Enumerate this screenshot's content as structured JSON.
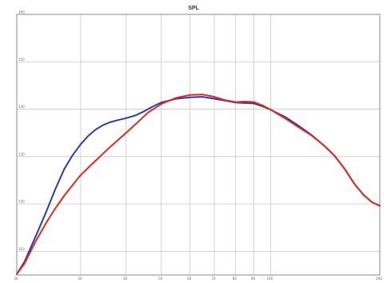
{
  "chart_data": {
    "type": "line",
    "title": "SPL",
    "xlabel": "",
    "ylabel": "",
    "x_scale": "log",
    "xlim": [
      20,
      200
    ],
    "ylim": [
      105,
      160
    ],
    "grid": true,
    "x_gridlines": [
      20,
      30,
      40,
      50,
      60,
      70,
      80,
      90,
      100,
      200
    ],
    "y_gridlines": [
      110,
      120,
      130,
      140,
      150,
      160
    ],
    "x_tick_labels": [
      "20",
      "30",
      "40",
      "50",
      "60",
      "70",
      "80",
      "90",
      "100",
      "200"
    ],
    "y_tick_labels": [
      "110",
      "120",
      "130",
      "140",
      "150",
      "160"
    ],
    "series": [
      {
        "color": "#2a3bb0",
        "points": [
          [
            20,
            105.2
          ],
          [
            21,
            107.8
          ],
          [
            22.5,
            113
          ],
          [
            24,
            118
          ],
          [
            25.5,
            123
          ],
          [
            27,
            127.3
          ],
          [
            28.5,
            130.3
          ],
          [
            30,
            132.6
          ],
          [
            31.5,
            134.4
          ],
          [
            33,
            135.7
          ],
          [
            34.5,
            136.6
          ],
          [
            36,
            137.2
          ],
          [
            38,
            137.7
          ],
          [
            40,
            138.1
          ],
          [
            42.5,
            138.7
          ],
          [
            45,
            139.6
          ],
          [
            47.5,
            140.6
          ],
          [
            50,
            141.4
          ],
          [
            55,
            142.2
          ],
          [
            60,
            142.5
          ],
          [
            65,
            142.6
          ],
          [
            70,
            142.2
          ],
          [
            75,
            141.8
          ],
          [
            80,
            141.4
          ],
          [
            85,
            141.3
          ],
          [
            90,
            141.2
          ],
          [
            95,
            140.6
          ],
          [
            100,
            139.9
          ],
          [
            110,
            138.3
          ],
          [
            120,
            136.4
          ],
          [
            130,
            134.5
          ],
          [
            140,
            132.4
          ],
          [
            150,
            130.2
          ],
          [
            160,
            127.4
          ],
          [
            170,
            124.3
          ],
          [
            180,
            122.0
          ],
          [
            190,
            120.4
          ],
          [
            200,
            119.6
          ]
        ]
      },
      {
        "color": "#dd2b1f",
        "points": [
          [
            20,
            105.2
          ],
          [
            21,
            107.4
          ],
          [
            22.5,
            112
          ],
          [
            24,
            115.8
          ],
          [
            25.5,
            119
          ],
          [
            27,
            121.7
          ],
          [
            28.5,
            124
          ],
          [
            30,
            126.1
          ],
          [
            32,
            128.2
          ],
          [
            34,
            130.1
          ],
          [
            36,
            131.9
          ],
          [
            38,
            133.5
          ],
          [
            40,
            135.0
          ],
          [
            43,
            137.2
          ],
          [
            46,
            139.3
          ],
          [
            50,
            141.1
          ],
          [
            55,
            142.4
          ],
          [
            60,
            143.0
          ],
          [
            65,
            143.1
          ],
          [
            70,
            142.6
          ],
          [
            75,
            141.9
          ],
          [
            80,
            141.5
          ],
          [
            85,
            141.6
          ],
          [
            90,
            141.5
          ],
          [
            95,
            140.8
          ],
          [
            100,
            139.9
          ],
          [
            110,
            138.0
          ],
          [
            120,
            136.1
          ],
          [
            130,
            134.4
          ],
          [
            140,
            132.4
          ],
          [
            150,
            130.2
          ],
          [
            160,
            127.4
          ],
          [
            170,
            124.3
          ],
          [
            180,
            122.0
          ],
          [
            190,
            120.4
          ],
          [
            200,
            119.6
          ]
        ]
      }
    ]
  }
}
